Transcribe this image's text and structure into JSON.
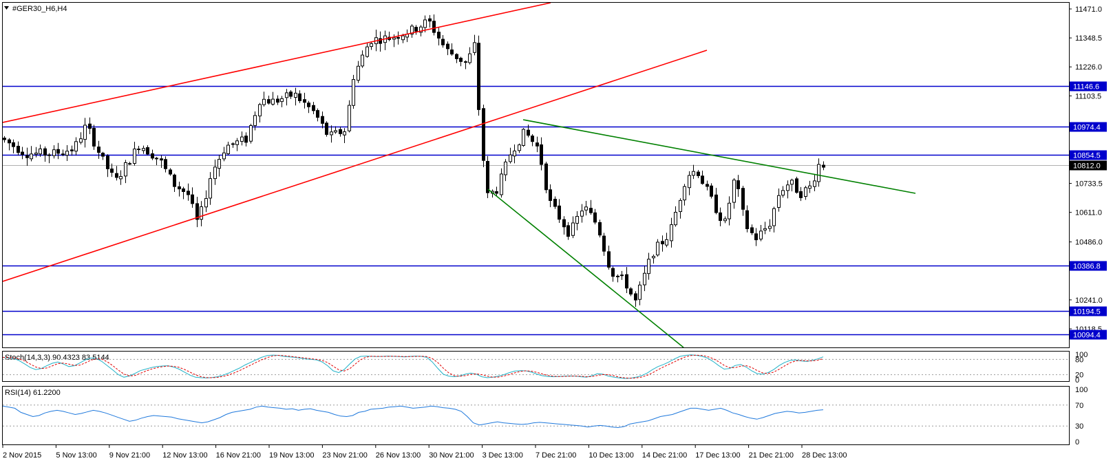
{
  "symbol_title": "#GER30_H6,H4",
  "price_axis": {
    "ticks": [
      {
        "label": "11471.0",
        "value": 11471.0
      },
      {
        "label": "11348.5",
        "value": 11348.5
      },
      {
        "label": "11226.0",
        "value": 11226.0
      },
      {
        "label": "11103.5",
        "value": 11103.5
      },
      {
        "label": "10733.5",
        "value": 10733.5
      },
      {
        "label": "10611.0",
        "value": 10611.0
      },
      {
        "label": "10486.0",
        "value": 10486.0
      },
      {
        "label": "10241.0",
        "value": 10241.0
      },
      {
        "label": "10118.5",
        "value": 10118.5
      }
    ],
    "range": [
      10080,
      11500
    ]
  },
  "levels": [
    {
      "label": "11146.6",
      "value": 11146.6,
      "color": "#0000cc"
    },
    {
      "label": "10974.4",
      "value": 10974.4,
      "color": "#0000cc"
    },
    {
      "label": "10854.5",
      "value": 10854.5,
      "color": "#0000cc"
    },
    {
      "label": "10386.8",
      "value": 10386.8,
      "color": "#0000cc"
    },
    {
      "label": "10194.5",
      "value": 10194.5,
      "color": "#0000cc"
    },
    {
      "label": "10094.4",
      "value": 10094.4,
      "color": "#0000cc"
    }
  ],
  "current_price": {
    "label": "10812.0",
    "value": 10812.0
  },
  "time_axis": [
    "2 Nov 2015",
    "5 Nov 13:00",
    "9 Nov 21:00",
    "12 Nov 13:00",
    "16 Nov 21:00",
    "19 Nov 13:00",
    "23 Nov 21:00",
    "26 Nov 13:00",
    "30 Nov 21:00",
    "3 Dec 13:00",
    "7 Dec 21:00",
    "10 Dec 13:00",
    "14 Dec 21:00",
    "17 Dec 13:00",
    "21 Dec 21:00",
    "28 Dec 13:00"
  ],
  "stoch": {
    "label": "Stoch(14,3,3) 90.4323 83.5144",
    "ticks": [
      "100",
      "80",
      "20",
      "0"
    ],
    "main_color": "#20b2c8",
    "signal_color": "#e00000",
    "values": [
      88,
      86,
      84,
      75,
      62,
      48,
      40,
      44,
      55,
      65,
      70,
      62,
      52,
      55,
      66,
      78,
      86,
      84,
      72,
      55,
      38,
      20,
      10,
      15,
      25,
      36,
      42,
      48,
      52,
      54,
      55,
      50,
      42,
      30,
      18,
      10,
      8,
      7,
      9,
      12,
      18,
      26,
      36,
      46,
      58,
      68,
      78,
      88,
      95,
      97,
      96,
      92,
      90,
      88,
      85,
      82,
      80,
      78,
      70,
      55,
      35,
      28,
      40,
      62,
      82,
      92,
      93,
      92,
      91,
      92,
      93,
      92,
      91,
      90,
      92,
      93,
      92,
      88,
      70,
      45,
      22,
      14,
      12,
      15,
      22,
      26,
      22,
      12,
      8,
      10,
      14,
      20,
      28,
      34,
      36,
      35,
      30,
      22,
      16,
      13,
      12,
      13,
      14,
      15,
      14,
      12,
      10,
      16,
      24,
      22,
      14,
      10,
      7,
      5,
      6,
      10,
      16,
      26,
      40,
      52,
      60,
      70,
      82,
      92,
      96,
      98,
      96,
      92,
      85,
      72,
      56,
      42,
      44,
      56,
      60,
      50,
      35,
      24,
      22,
      28,
      40,
      56,
      68,
      76,
      78,
      74,
      72,
      76,
      82,
      90
    ]
  },
  "rsi": {
    "label": "RSI(14) 61.2200",
    "ticks": [
      "100",
      "70",
      "30",
      "0"
    ],
    "color": "#1e78dc",
    "values": [
      68,
      66,
      64,
      56,
      52,
      48,
      50,
      55,
      58,
      60,
      58,
      55,
      52,
      54,
      57,
      60,
      58,
      55,
      51,
      47,
      43,
      39,
      41,
      45,
      48,
      50,
      49,
      48,
      47,
      44,
      42,
      40,
      38,
      36,
      38,
      42,
      46,
      52,
      56,
      58,
      60,
      62,
      66,
      68,
      66,
      65,
      64,
      62,
      63,
      60,
      62,
      63,
      60,
      58,
      56,
      52,
      49,
      48,
      50,
      56,
      58,
      62,
      63,
      64,
      66,
      67,
      68,
      66,
      64,
      65,
      66,
      68,
      67,
      65,
      64,
      62,
      58,
      48,
      36,
      32,
      34,
      36,
      38,
      36,
      35,
      34,
      33,
      34,
      36,
      37,
      36,
      35,
      34,
      33,
      32,
      31,
      30,
      28,
      30,
      31,
      30,
      28,
      27,
      29,
      34,
      36,
      38,
      40,
      44,
      48,
      50,
      52,
      56,
      60,
      64,
      64,
      62,
      60,
      62,
      64,
      60,
      55,
      52,
      48,
      45,
      43,
      46,
      50,
      54,
      56,
      58,
      57,
      55,
      56,
      58,
      60,
      61
    ]
  }
}
